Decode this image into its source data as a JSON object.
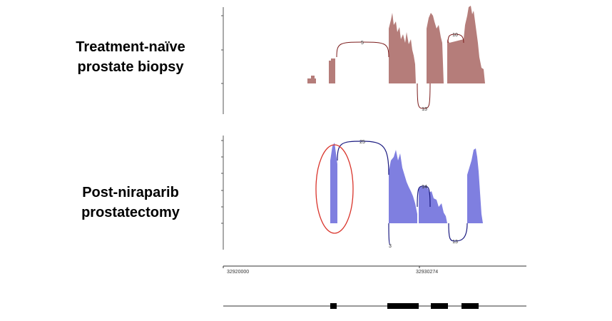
{
  "tracks": [
    {
      "label_lines": [
        "Treatment-naïve",
        "prostate biopsy"
      ],
      "junctions": [
        5,
        13,
        10
      ]
    },
    {
      "label_lines": [
        "Post-niraparib",
        "prostatectomy"
      ],
      "junctions": [
        25,
        3,
        14,
        13
      ]
    }
  ],
  "axis": {
    "ticks": [
      32920000,
      32930274
    ]
  }
}
